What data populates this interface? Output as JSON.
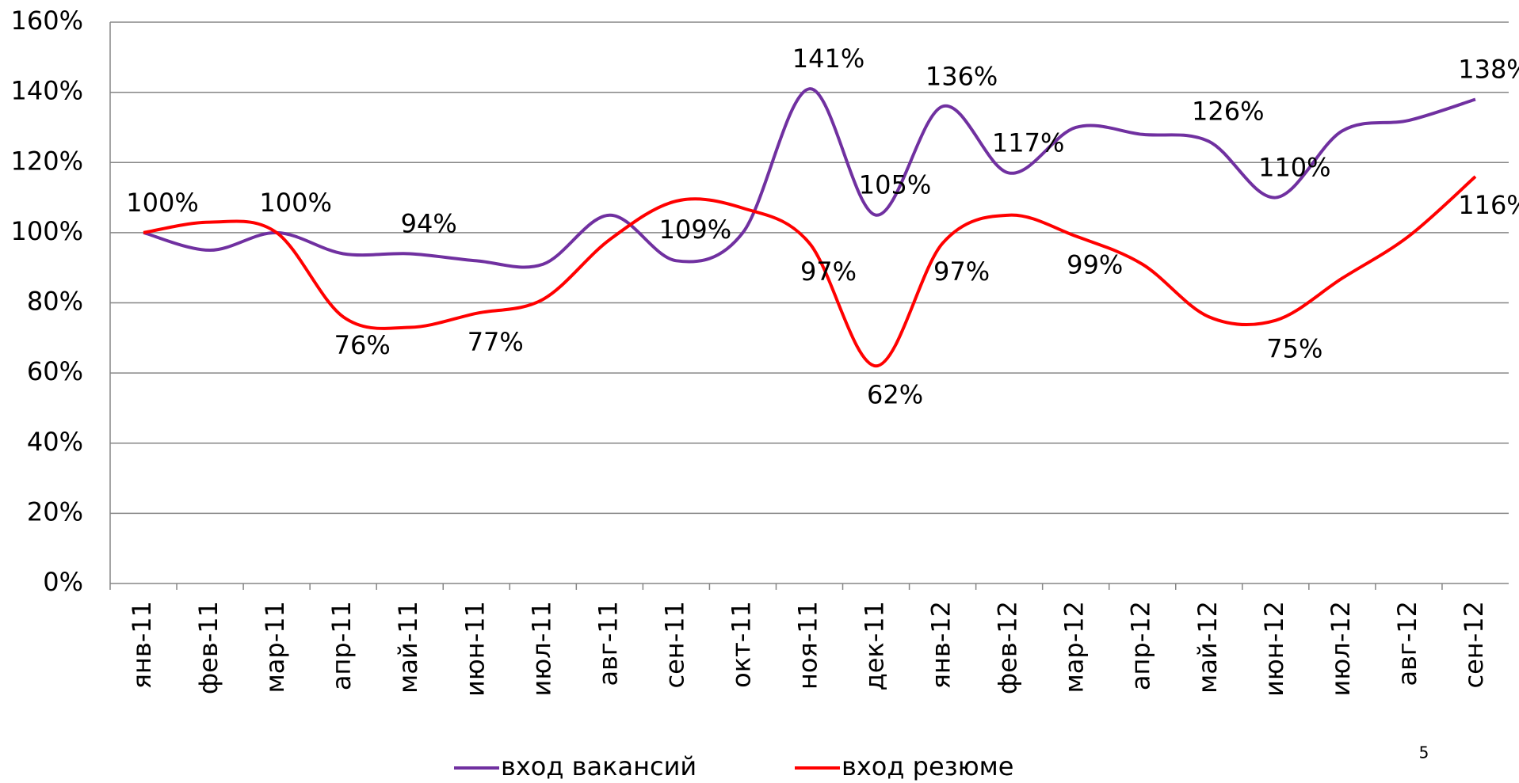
{
  "chart_data": {
    "type": "line",
    "categories": [
      "янв-11",
      "фев-11",
      "мар-11",
      "апр-11",
      "май-11",
      "июн-11",
      "июл-11",
      "авг-11",
      "сен-11",
      "окт-11",
      "ноя-11",
      "дек-11",
      "янв-12",
      "фев-12",
      "мар-12",
      "апр-12",
      "май-12",
      "июн-12",
      "июл-12",
      "авг-12",
      "сен-12"
    ],
    "series": [
      {
        "name": "вход вакансий",
        "color": "#7030a0",
        "values": [
          100,
          95,
          100,
          94,
          94,
          92,
          91,
          105,
          92,
          100,
          141,
          105,
          136,
          117,
          130,
          128,
          126,
          110,
          129,
          132,
          138
        ],
        "value_labels": [
          "100%",
          null,
          "100%",
          null,
          "94%",
          null,
          null,
          null,
          null,
          null,
          "141%",
          "105%",
          "136%",
          "117%",
          null,
          null,
          "126%",
          "110%",
          null,
          null,
          "138%"
        ]
      },
      {
        "name": "вход резюме",
        "color": "#ff0000",
        "values": [
          100,
          103,
          100,
          76,
          73,
          77,
          81,
          98,
          109,
          107,
          97,
          62,
          97,
          105,
          99,
          91,
          76,
          75,
          87,
          99,
          116
        ],
        "value_labels": [
          null,
          null,
          null,
          "76%",
          null,
          "77%",
          null,
          null,
          "109%",
          null,
          "97%",
          "62%",
          "97%",
          null,
          "99%",
          null,
          null,
          "75%",
          null,
          null,
          "116%"
        ]
      }
    ],
    "ylim": [
      0,
      1.6
    ],
    "yticks": [
      {
        "value": 0,
        "label": "0%"
      },
      {
        "value": 0.2,
        "label": "20%"
      },
      {
        "value": 0.4,
        "label": "40%"
      },
      {
        "value": 0.6,
        "label": "60%"
      },
      {
        "value": 0.8,
        "label": "80%"
      },
      {
        "value": 1,
        "label": "100%"
      },
      {
        "value": 1.2,
        "label": "120%"
      },
      {
        "value": 1.4,
        "label": "140%"
      },
      {
        "value": 1.6,
        "label": "160%"
      }
    ],
    "grid": true,
    "legend": "bottom",
    "page_number": "5"
  }
}
